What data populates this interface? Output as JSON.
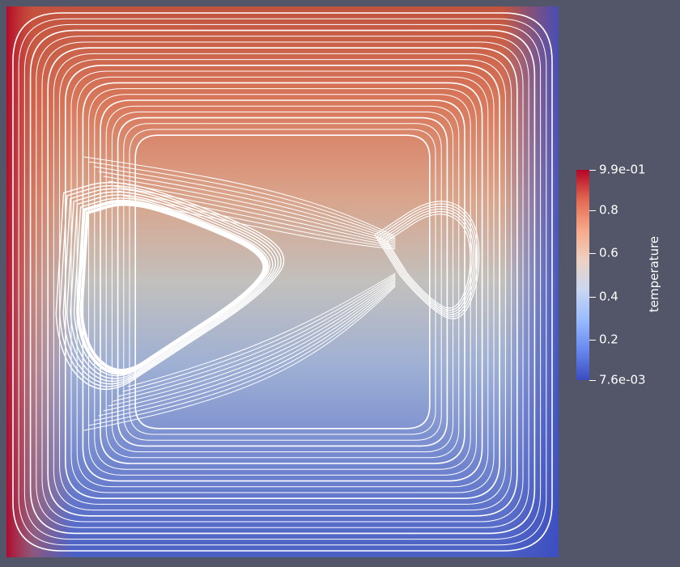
{
  "colorbar": {
    "title": "temperature",
    "ticks": [
      {
        "value": 0.99,
        "label": "9.9e-01"
      },
      {
        "value": 0.8,
        "label": "0.8"
      },
      {
        "value": 0.6,
        "label": "0.6"
      },
      {
        "value": 0.4,
        "label": "0.4"
      },
      {
        "value": 0.2,
        "label": "0.2"
      },
      {
        "value": 0.0076,
        "label": "7.6e-03"
      }
    ],
    "range": [
      0.0076,
      0.99
    ],
    "colormap": [
      "#3b4cc0",
      "#6788ee",
      "#9abbff",
      "#c9d7f0",
      "#edd1c2",
      "#f7a889",
      "#e26952",
      "#b40426"
    ]
  },
  "scene": {
    "background": "#525668",
    "streamline_color": "#ffffff"
  }
}
